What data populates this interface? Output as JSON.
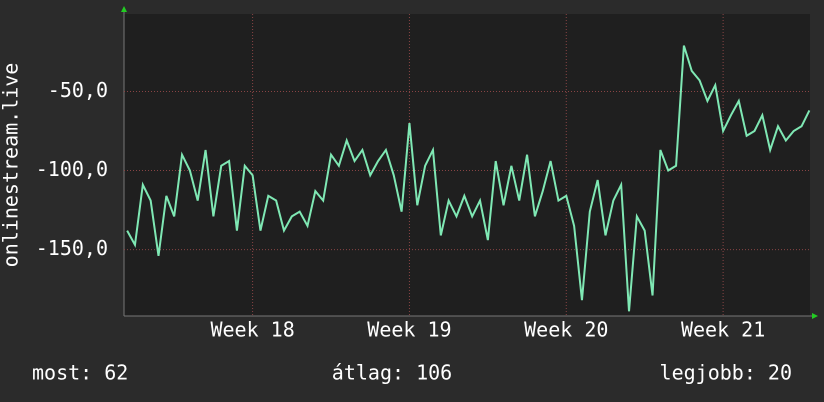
{
  "chart_data": {
    "type": "line",
    "ylabel": "onlinestream.live",
    "x": [
      17.2,
      17.25,
      17.3,
      17.35,
      17.4,
      17.45,
      17.5,
      17.55,
      17.6,
      17.65,
      17.7,
      17.75,
      17.8,
      17.85,
      17.9,
      17.95,
      18.0,
      18.05,
      18.1,
      18.15,
      18.2,
      18.25,
      18.3,
      18.35,
      18.4,
      18.45,
      18.5,
      18.55,
      18.6,
      18.65,
      18.7,
      18.75,
      18.8,
      18.85,
      18.9,
      18.95,
      19.0,
      19.05,
      19.1,
      19.15,
      19.2,
      19.25,
      19.3,
      19.35,
      19.4,
      19.45,
      19.5,
      19.55,
      19.6,
      19.65,
      19.7,
      19.75,
      19.8,
      19.85,
      19.9,
      19.95,
      20.0,
      20.05,
      20.1,
      20.15,
      20.2,
      20.25,
      20.3,
      20.35,
      20.4,
      20.45,
      20.5,
      20.55,
      20.6,
      20.65,
      20.7,
      20.75,
      20.8,
      20.85,
      20.9,
      20.95,
      21.0,
      21.05,
      21.1,
      21.15,
      21.2,
      21.25,
      21.3,
      21.35,
      21.4,
      21.45,
      21.5,
      21.55
    ],
    "series": [
      {
        "name": "onlinestream.live",
        "color": "#7fe8b4",
        "values": [
          -138,
          -147,
          -109,
          -119,
          -154,
          -116,
          -129,
          -90,
          -100,
          -119,
          -87,
          -129,
          -97,
          -94,
          -138,
          -97,
          -103,
          -138,
          -116,
          -119,
          -138,
          -129,
          -126,
          -135,
          -113,
          -119,
          -90,
          -97,
          -81,
          -94,
          -87,
          -103,
          -94,
          -87,
          -103,
          -126,
          -70,
          -122,
          -97,
          -87,
          -141,
          -119,
          -129,
          -116,
          -129,
          -119,
          -144,
          -94,
          -122,
          -97,
          -119,
          -90,
          -129,
          -113,
          -94,
          -119,
          -116,
          -135,
          -182,
          -126,
          -106,
          -141,
          -119,
          -109,
          -189,
          -129,
          -138,
          -179,
          -87,
          -100,
          -97,
          -21,
          -37,
          -43,
          -56,
          -46,
          -75,
          -65,
          -56,
          -78,
          -75,
          -65,
          -87,
          -72,
          -81,
          -75,
          -72,
          -62
        ]
      }
    ],
    "xlim": [
      17.18,
      21.554
    ],
    "ylim": [
      -192,
      -1
    ],
    "yticks": [
      {
        "value": -50,
        "label": "-50,0"
      },
      {
        "value": -100,
        "label": "-100,0"
      },
      {
        "value": -150,
        "label": "-150,0"
      }
    ],
    "xticks": [
      {
        "value": 18,
        "label": "Week 18"
      },
      {
        "value": 19,
        "label": "Week 19"
      },
      {
        "value": 20,
        "label": "Week 20"
      },
      {
        "value": 21,
        "label": "Week 21"
      }
    ],
    "grid": true,
    "footer": [
      "most: 62",
      "átlag: 106",
      "legjobb: 20"
    ]
  }
}
